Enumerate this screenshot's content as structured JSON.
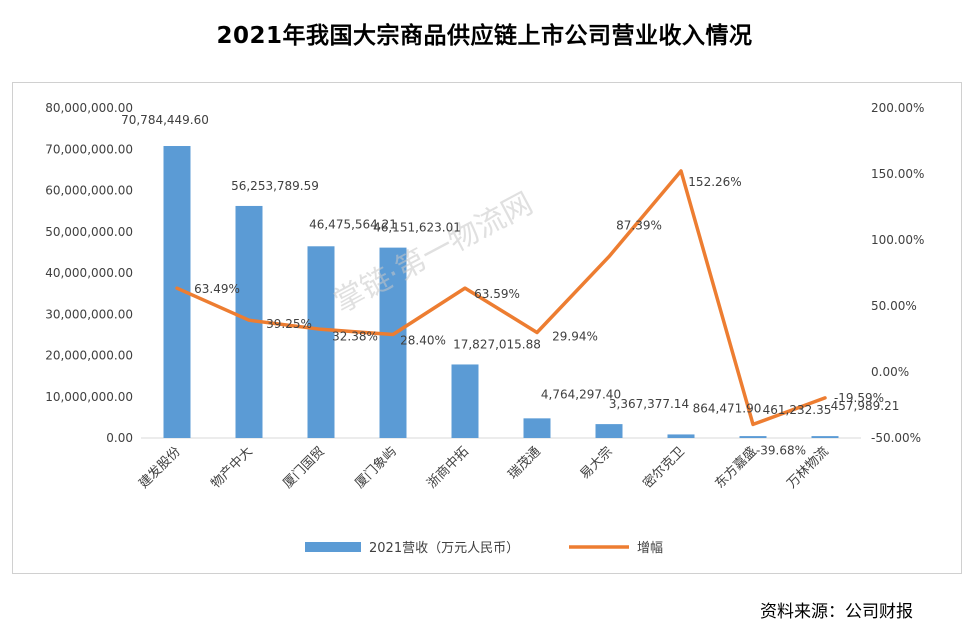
{
  "title": "2021年我国大宗商品供应链上市公司营业收入情况",
  "source": "资料来源：公司财报",
  "watermark": "掌链·第一物流网",
  "chart_data": {
    "type": "bar",
    "categories": [
      "建发股份",
      "物产中大",
      "厦门国贸",
      "厦门象屿",
      "浙商中拓",
      "瑞茂通",
      "易大宗",
      "密尔克卫",
      "东方嘉盛",
      "万林物流"
    ],
    "series": [
      {
        "name": "2021营收（万元人民币）",
        "type": "bar",
        "axis": "left",
        "color": "#5B9BD5",
        "values": [
          70784449.6,
          56253789.59,
          46475564.21,
          46151623.01,
          17827015.88,
          4764297.4,
          3367377.14,
          864471.9,
          461232.35,
          457989.21
        ],
        "labels": [
          "70,784,449.60",
          "56,253,789.59",
          "46,475,564.21",
          "46,151,623.01",
          "17,827,015.88",
          "4,764,297.40",
          "3,367,377.14",
          "864,471.90",
          "461,232.35",
          "457,989.21"
        ]
      },
      {
        "name": "增幅",
        "type": "line",
        "axis": "right",
        "color": "#ED7D31",
        "values": [
          63.49,
          39.25,
          32.38,
          28.4,
          63.59,
          29.94,
          87.39,
          152.26,
          -39.68,
          -19.59
        ],
        "labels": [
          "63.49%",
          "39.25%",
          "32.38%",
          "28.40%",
          "63.59%",
          "29.94%",
          "87.39%",
          "152.26%",
          "-39.68%",
          "-19.59%"
        ]
      }
    ],
    "y_left": {
      "min": 0,
      "max": 80000000,
      "ticks": [
        0,
        10000000,
        20000000,
        30000000,
        40000000,
        50000000,
        60000000,
        70000000,
        80000000
      ],
      "tick_labels": [
        "0.00",
        "10,000,000.00",
        "20,000,000.00",
        "30,000,000.00",
        "40,000,000.00",
        "50,000,000.00",
        "60,000,000.00",
        "70,000,000.00",
        "80,000,000.00"
      ]
    },
    "y_right": {
      "min": -50,
      "max": 200,
      "ticks": [
        -50,
        0,
        50,
        100,
        150,
        200
      ],
      "tick_labels": [
        "-50.00%",
        "0.00%",
        "50.00%",
        "100.00%",
        "150.00%",
        "200.00%"
      ]
    },
    "grid": false,
    "legend_position": "bottom"
  }
}
